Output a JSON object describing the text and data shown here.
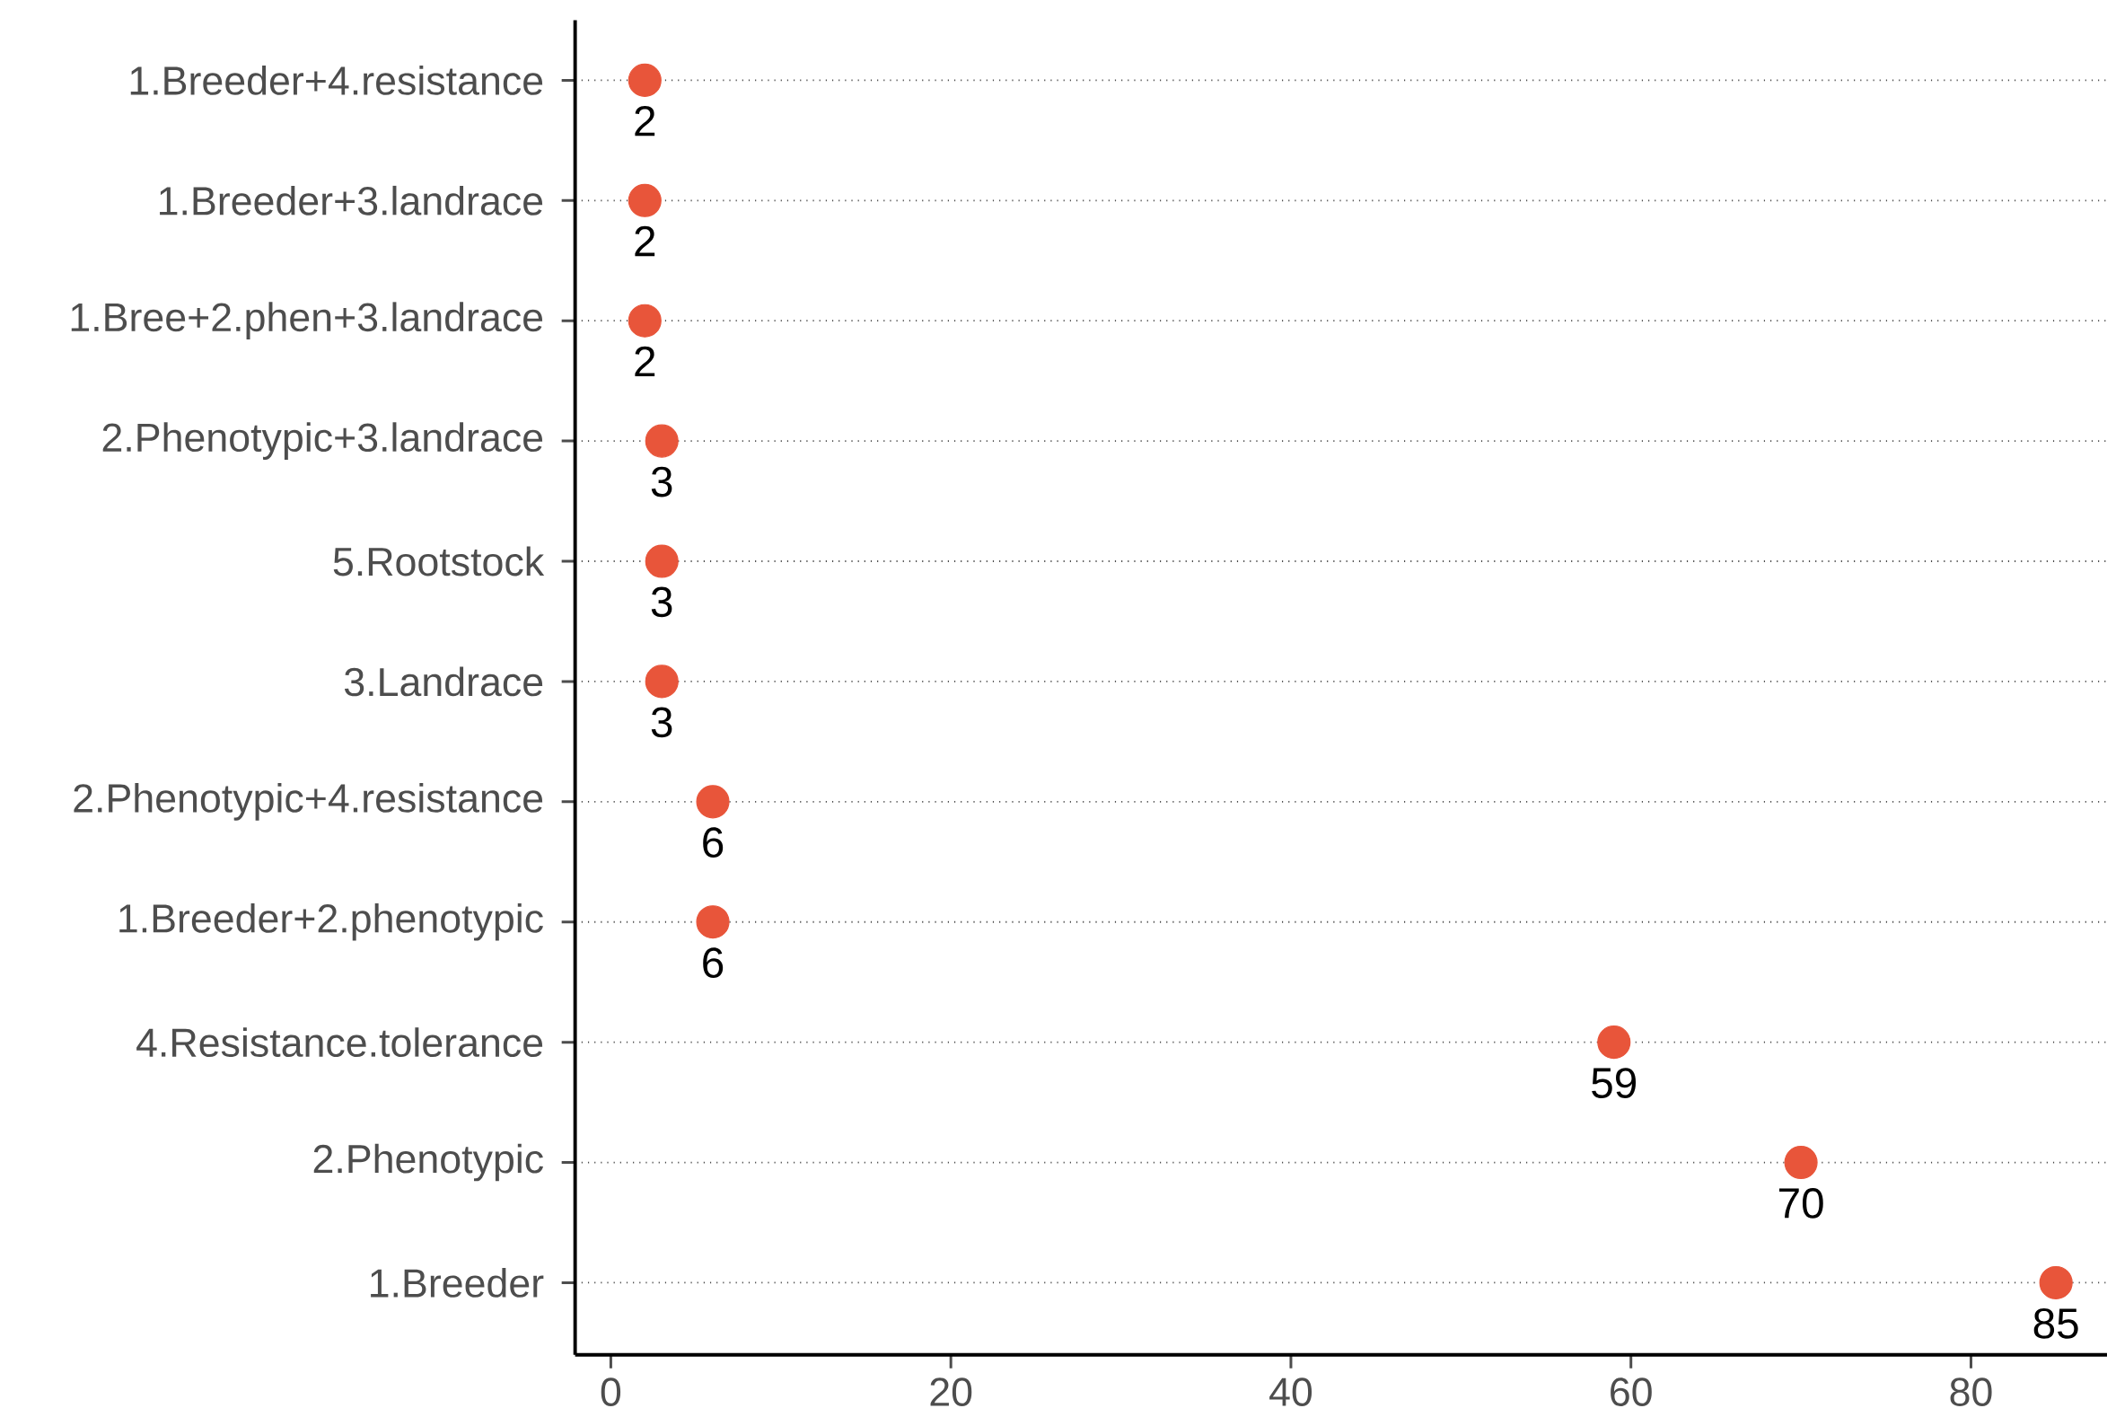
{
  "chart_data": {
    "type": "scatter",
    "categories": [
      "1.Breeder+4.resistance",
      "1.Breeder+3.landrace",
      "1.Bree+2.phen+3.landrace",
      "2.Phenotypic+3.landrace",
      "5.Rootstock",
      "3.Landrace",
      "2.Phenotypic+4.resistance",
      "1.Breeder+2.phenotypic",
      "4.Resistance.tolerance",
      "2.Phenotypic",
      "1.Breeder"
    ],
    "values": [
      2,
      2,
      2,
      3,
      3,
      3,
      6,
      6,
      59,
      70,
      85
    ],
    "color": "#e8553a",
    "orientation": "horizontal",
    "data_labels": true,
    "grid": "y",
    "xlim": [
      -2.1,
      88
    ],
    "xticks": [
      0,
      20,
      40,
      60,
      80
    ]
  }
}
